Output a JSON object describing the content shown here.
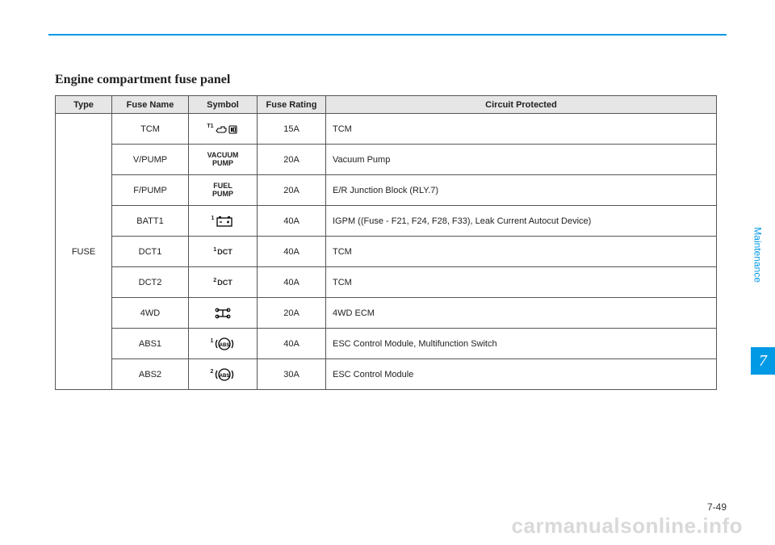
{
  "title": "Engine compartment fuse panel",
  "headers": {
    "type": "Type",
    "fuse_name": "Fuse Name",
    "symbol": "Symbol",
    "rating": "Fuse Rating",
    "circuit": "Circuit Protected"
  },
  "type_label": "FUSE",
  "rows": [
    {
      "name": "TCM",
      "sym_kind": "tcm",
      "sym_sup": "T1",
      "sym_text": "",
      "rating": "15A",
      "circuit": "TCM"
    },
    {
      "name": "V/PUMP",
      "sym_kind": "text",
      "sym_sup": "",
      "sym_text": "VACUUM\nPUMP",
      "rating": "20A",
      "circuit": "Vacuum Pump"
    },
    {
      "name": "F/PUMP",
      "sym_kind": "text",
      "sym_sup": "",
      "sym_text": "FUEL\nPUMP",
      "rating": "20A",
      "circuit": "E/R Junction Block (RLY.7)"
    },
    {
      "name": "BATT1",
      "sym_kind": "batt",
      "sym_sup": "1",
      "sym_text": "",
      "rating": "40A",
      "circuit": "IGPM ((Fuse - F21, F24, F28, F33), Leak Current Autocut Device)"
    },
    {
      "name": "DCT1",
      "sym_kind": "text",
      "sym_sup": "1",
      "sym_text": "DCT",
      "rating": "40A",
      "circuit": "TCM"
    },
    {
      "name": "DCT2",
      "sym_kind": "text",
      "sym_sup": "2",
      "sym_text": "DCT",
      "rating": "40A",
      "circuit": "TCM"
    },
    {
      "name": "4WD",
      "sym_kind": "4wd",
      "sym_sup": "",
      "sym_text": "",
      "rating": "20A",
      "circuit": "4WD ECM"
    },
    {
      "name": "ABS1",
      "sym_kind": "abs",
      "sym_sup": "1",
      "sym_text": "",
      "rating": "40A",
      "circuit": "ESC Control Module, Multifunction Switch"
    },
    {
      "name": "ABS2",
      "sym_kind": "abs",
      "sym_sup": "2",
      "sym_text": "",
      "rating": "30A",
      "circuit": "ESC Control Module"
    }
  ],
  "side_label": "Maintenance",
  "chapter": "7",
  "page_num": "7-49",
  "watermark": "carmanualsonline.info",
  "colors": {
    "accent": "#0099e6",
    "header_bg": "#e6e6e6",
    "border": "#555555",
    "text": "#222222",
    "watermark": "#d9d9d9"
  }
}
